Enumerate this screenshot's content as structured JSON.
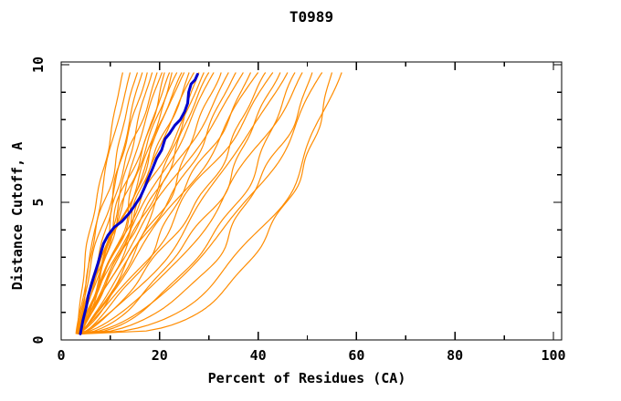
{
  "page": {
    "background": "#ffffff",
    "text_color": "#000000"
  },
  "chart_data": {
    "type": "line",
    "title": "T0989",
    "xlabel": "Percent of Residues (CA)",
    "ylabel": "Distance Cutoff, A",
    "xlim": [
      0,
      100
    ],
    "ylim": [
      0,
      10
    ],
    "x_major_ticks": [
      0,
      20,
      40,
      60,
      80,
      100
    ],
    "x_minor_ticks": [
      10,
      30,
      50,
      70,
      90
    ],
    "y_major_ticks": [
      0,
      5,
      10
    ],
    "y_minor_ticks": [
      1,
      2,
      3,
      4,
      6,
      7,
      8,
      9
    ],
    "grid": false,
    "legend": false,
    "frame_color": "#000000",
    "curve_cutoff_range": [
      0.22,
      9.72
    ],
    "series": [
      {
        "name": "submitted-models",
        "color": "#ff8c00",
        "stroke_width": 1.2,
        "count": 36,
        "curves": [
          {
            "start_pct": 3.2,
            "end_pct": 12.5,
            "shape": 1.25,
            "wiggle": 0.5,
            "seed": 11
          },
          {
            "start_pct": 3.0,
            "end_pct": 14.0,
            "shape": 1.15,
            "wiggle": 0.6,
            "seed": 22
          },
          {
            "start_pct": 3.4,
            "end_pct": 15.5,
            "shape": 1.2,
            "wiggle": 0.7,
            "seed": 33
          },
          {
            "start_pct": 3.1,
            "end_pct": 16.5,
            "shape": 1.05,
            "wiggle": 0.7,
            "seed": 44
          },
          {
            "start_pct": 3.6,
            "end_pct": 17.5,
            "shape": 1.1,
            "wiggle": 0.8,
            "seed": 55
          },
          {
            "start_pct": 3.3,
            "end_pct": 18.5,
            "shape": 0.95,
            "wiggle": 0.8,
            "seed": 66
          },
          {
            "start_pct": 3.8,
            "end_pct": 19.5,
            "shape": 1.15,
            "wiggle": 0.9,
            "seed": 77
          },
          {
            "start_pct": 3.2,
            "end_pct": 20.5,
            "shape": 1.0,
            "wiggle": 0.9,
            "seed": 88
          },
          {
            "start_pct": 4.0,
            "end_pct": 21.0,
            "shape": 0.9,
            "wiggle": 1.0,
            "seed": 99
          },
          {
            "start_pct": 3.5,
            "end_pct": 22.0,
            "shape": 1.1,
            "wiggle": 0.9,
            "seed": 110
          },
          {
            "start_pct": 3.0,
            "end_pct": 22.5,
            "shape": 0.85,
            "wiggle": 1.0,
            "seed": 121
          },
          {
            "start_pct": 3.7,
            "end_pct": 23.5,
            "shape": 1.05,
            "wiggle": 1.0,
            "seed": 132
          },
          {
            "start_pct": 3.3,
            "end_pct": 24.5,
            "shape": 0.95,
            "wiggle": 1.1,
            "seed": 143
          },
          {
            "start_pct": 4.2,
            "end_pct": 25.0,
            "shape": 1.15,
            "wiggle": 0.9,
            "seed": 154
          },
          {
            "start_pct": 3.4,
            "end_pct": 26.0,
            "shape": 0.9,
            "wiggle": 1.1,
            "seed": 165
          },
          {
            "start_pct": 3.8,
            "end_pct": 27.0,
            "shape": 1.05,
            "wiggle": 1.0,
            "seed": 176
          },
          {
            "start_pct": 3.2,
            "end_pct": 28.0,
            "shape": 0.8,
            "wiggle": 1.2,
            "seed": 187
          },
          {
            "start_pct": 4.0,
            "end_pct": 29.0,
            "shape": 1.0,
            "wiggle": 1.1,
            "seed": 198
          },
          {
            "start_pct": 3.5,
            "end_pct": 30.0,
            "shape": 0.9,
            "wiggle": 1.2,
            "seed": 209
          },
          {
            "start_pct": 3.9,
            "end_pct": 31.0,
            "shape": 1.05,
            "wiggle": 1.1,
            "seed": 220
          },
          {
            "start_pct": 3.3,
            "end_pct": 32.5,
            "shape": 0.75,
            "wiggle": 1.2,
            "seed": 231
          },
          {
            "start_pct": 4.1,
            "end_pct": 34.0,
            "shape": 0.95,
            "wiggle": 1.2,
            "seed": 242
          },
          {
            "start_pct": 3.6,
            "end_pct": 35.5,
            "shape": 0.85,
            "wiggle": 1.3,
            "seed": 253
          },
          {
            "start_pct": 3.2,
            "end_pct": 37.0,
            "shape": 1.0,
            "wiggle": 1.2,
            "seed": 264
          },
          {
            "start_pct": 4.3,
            "end_pct": 38.5,
            "shape": 0.8,
            "wiggle": 1.3,
            "seed": 275
          },
          {
            "start_pct": 3.5,
            "end_pct": 40.0,
            "shape": 0.9,
            "wiggle": 1.3,
            "seed": 286
          },
          {
            "start_pct": 3.8,
            "end_pct": 41.5,
            "shape": 0.7,
            "wiggle": 1.4,
            "seed": 297
          },
          {
            "start_pct": 3.3,
            "end_pct": 43.0,
            "shape": 0.85,
            "wiggle": 1.3,
            "seed": 308
          },
          {
            "start_pct": 4.0,
            "end_pct": 44.5,
            "shape": 0.6,
            "wiggle": 1.4,
            "seed": 319
          },
          {
            "start_pct": 3.6,
            "end_pct": 46.0,
            "shape": 0.75,
            "wiggle": 1.4,
            "seed": 330
          },
          {
            "start_pct": 4.2,
            "end_pct": 47.5,
            "shape": 0.5,
            "wiggle": 1.5,
            "seed": 341
          },
          {
            "start_pct": 3.4,
            "end_pct": 49.0,
            "shape": 0.65,
            "wiggle": 1.4,
            "seed": 352
          },
          {
            "start_pct": 3.9,
            "end_pct": 51.0,
            "shape": 0.45,
            "wiggle": 1.5,
            "seed": 363
          },
          {
            "start_pct": 3.5,
            "end_pct": 53.0,
            "shape": 0.55,
            "wiggle": 1.5,
            "seed": 374
          },
          {
            "start_pct": 4.1,
            "end_pct": 55.0,
            "shape": 0.3,
            "wiggle": 1.4,
            "seed": 385
          },
          {
            "start_pct": 3.7,
            "end_pct": 57.0,
            "shape": 0.4,
            "wiggle": 1.5,
            "seed": 396
          }
        ]
      },
      {
        "name": "highlighted-model",
        "color": "#0000cd",
        "stroke_width": 3,
        "points": [
          [
            3.9,
            0.22
          ],
          [
            4.4,
            0.7
          ],
          [
            5.1,
            1.2
          ],
          [
            5.5,
            1.6
          ],
          [
            6.1,
            2.0
          ],
          [
            6.8,
            2.4
          ],
          [
            7.5,
            2.8
          ],
          [
            8.1,
            3.2
          ],
          [
            8.6,
            3.5
          ],
          [
            9.5,
            3.8
          ],
          [
            10.8,
            4.1
          ],
          [
            12.3,
            4.3
          ],
          [
            13.8,
            4.6
          ],
          [
            15.0,
            4.9
          ],
          [
            16.1,
            5.2
          ],
          [
            17.1,
            5.6
          ],
          [
            17.8,
            5.9
          ],
          [
            18.5,
            6.2
          ],
          [
            19.4,
            6.6
          ],
          [
            20.4,
            6.9
          ],
          [
            21.1,
            7.3
          ],
          [
            22.0,
            7.5
          ],
          [
            23.1,
            7.8
          ],
          [
            24.2,
            8.0
          ],
          [
            25.1,
            8.3
          ],
          [
            25.7,
            8.6
          ],
          [
            25.9,
            9.0
          ],
          [
            26.4,
            9.3
          ],
          [
            27.2,
            9.45
          ],
          [
            27.7,
            9.65
          ]
        ]
      }
    ]
  }
}
